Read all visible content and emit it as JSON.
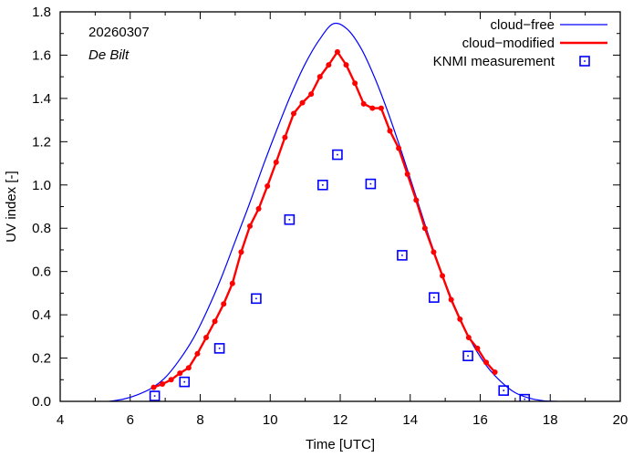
{
  "chart_data": {
    "type": "line",
    "xlabel": "Time  [UTC]",
    "ylabel": "UV index  [-]",
    "xlim": [
      4,
      20
    ],
    "ylim": [
      0,
      1.8
    ],
    "xticks": [
      4,
      6,
      8,
      10,
      12,
      14,
      16,
      18,
      20
    ],
    "xtick_labels": [
      "4",
      "6",
      "8",
      "10",
      "12",
      "14",
      "16",
      "18",
      "20"
    ],
    "yticks": [
      0.0,
      0.2,
      0.4,
      0.6,
      0.8,
      1.0,
      1.2,
      1.4,
      1.6,
      1.8
    ],
    "ytick_labels": [
      "0.0",
      "0.2",
      "0.4",
      "0.6",
      "0.8",
      "1.0",
      "1.2",
      "1.4",
      "1.6",
      "1.8"
    ],
    "grid": false,
    "legend_position": "top-right",
    "annotations": {
      "date": "20260307",
      "location": "De Bilt"
    },
    "series": [
      {
        "name": "cloud−free",
        "style": "line",
        "color": "#0000ff",
        "x": [
          5.4,
          5.8,
          6.2,
          6.6,
          7.0,
          7.4,
          7.8,
          8.2,
          8.6,
          9.0,
          9.4,
          9.8,
          10.2,
          10.6,
          11.0,
          11.4,
          11.8,
          12.2,
          12.6,
          13.0,
          13.4,
          13.8,
          14.2,
          14.6,
          15.0,
          15.4,
          15.8,
          16.2,
          16.6,
          17.0,
          17.4,
          17.8,
          18.2
        ],
        "values": [
          0.0,
          0.01,
          0.03,
          0.06,
          0.11,
          0.19,
          0.29,
          0.42,
          0.57,
          0.74,
          0.91,
          1.09,
          1.26,
          1.42,
          1.56,
          1.67,
          1.745,
          1.72,
          1.63,
          1.49,
          1.32,
          1.13,
          0.93,
          0.73,
          0.55,
          0.39,
          0.26,
          0.16,
          0.09,
          0.04,
          0.015,
          0.003,
          0.0
        ]
      },
      {
        "name": "cloud−modified",
        "style": "line-points",
        "color": "#ff0000",
        "x": [
          6.67,
          6.92,
          7.17,
          7.42,
          7.67,
          7.92,
          8.17,
          8.42,
          8.67,
          8.92,
          9.17,
          9.42,
          9.67,
          9.92,
          10.17,
          10.42,
          10.67,
          10.92,
          11.17,
          11.42,
          11.67,
          11.92,
          12.17,
          12.42,
          12.67,
          12.92,
          13.17,
          13.42,
          13.67,
          13.92,
          14.17,
          14.42,
          14.67,
          14.92,
          15.17,
          15.42,
          15.67,
          15.92,
          16.17,
          16.42
        ],
        "values": [
          0.065,
          0.08,
          0.1,
          0.13,
          0.155,
          0.22,
          0.295,
          0.37,
          0.45,
          0.545,
          0.69,
          0.81,
          0.89,
          0.995,
          1.105,
          1.22,
          1.33,
          1.38,
          1.42,
          1.5,
          1.555,
          1.615,
          1.555,
          1.47,
          1.375,
          1.355,
          1.355,
          1.25,
          1.17,
          1.05,
          0.93,
          0.8,
          0.69,
          0.58,
          0.47,
          0.38,
          0.295,
          0.245,
          0.18,
          0.135
        ]
      },
      {
        "name": "KNMI measurement",
        "style": "markers",
        "color": "#0000ff",
        "x": [
          6.7,
          7.55,
          8.55,
          9.6,
          10.55,
          11.5,
          11.92,
          12.87,
          13.77,
          14.68,
          15.65,
          16.67,
          17.27
        ],
        "values": [
          0.025,
          0.09,
          0.245,
          0.475,
          0.84,
          1.0,
          1.14,
          1.005,
          0.675,
          0.48,
          0.21,
          0.05,
          0.01
        ]
      }
    ]
  }
}
